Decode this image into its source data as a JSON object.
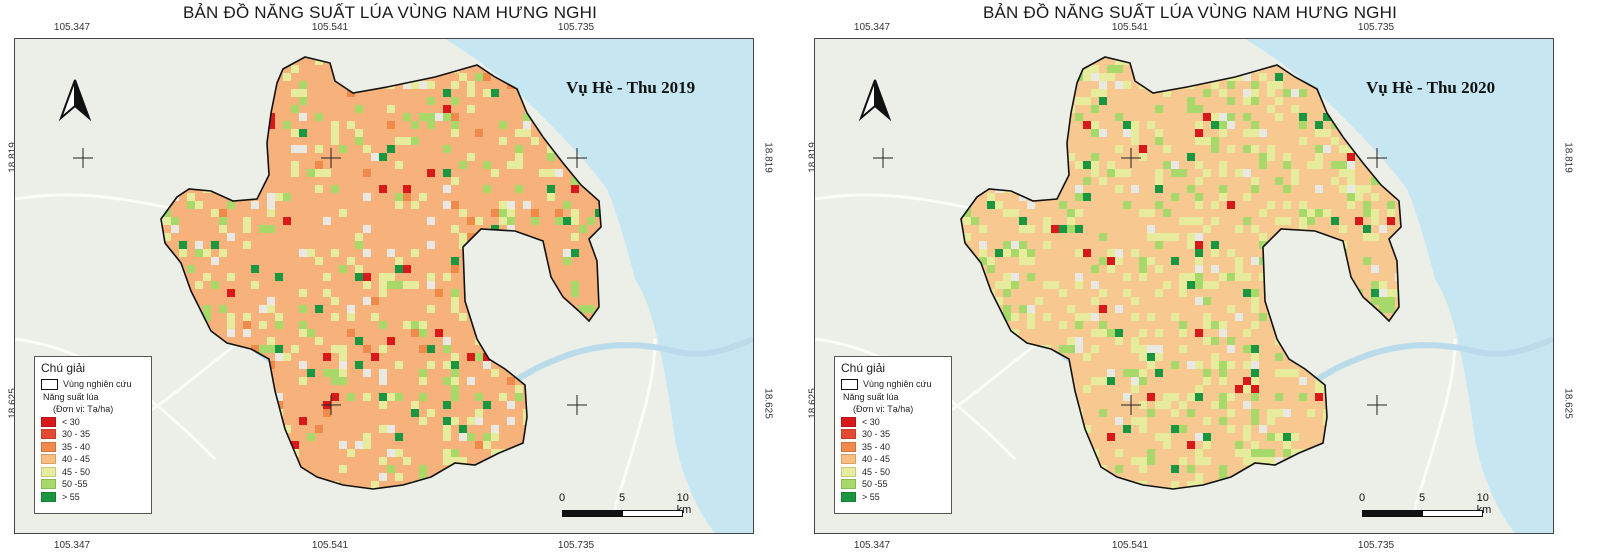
{
  "maps": [
    {
      "title": "BẢN ĐỒ NĂNG SUẤT LÚA VÙNG NAM HƯNG NGHI",
      "season": "Vụ Hè - Thu 2019",
      "x_ticks": [
        "105.347",
        "105.541",
        "105.735"
      ],
      "y_ticks": [
        "18.819",
        "18.625"
      ]
    },
    {
      "title": "BẢN ĐỒ NĂNG SUẤT LÚA VÙNG NAM HƯNG NGHI",
      "season": "Vụ Hè - Thu 2020",
      "x_ticks": [
        "105.347",
        "105.541",
        "105.735"
      ],
      "y_ticks": [
        "18.819",
        "18.625"
      ]
    }
  ],
  "legend": {
    "title": "Chú giải",
    "study_area": "Vùng nghiên cứu",
    "yield_label": "Năng suất lúa",
    "unit": "(Đơn vị: Tạ/ha)",
    "classes": [
      {
        "label": "< 30",
        "color": "#d7191c"
      },
      {
        "label": "30 - 35",
        "color": "#e34a33"
      },
      {
        "label": "35 - 40",
        "color": "#f08a4b"
      },
      {
        "label": "40 - 45",
        "color": "#f9bd7e"
      },
      {
        "label": "45 - 50",
        "color": "#e7ec9c"
      },
      {
        "label": "50 -55",
        "color": "#a6d96a"
      },
      {
        "label": "> 55",
        "color": "#1a9641"
      }
    ]
  },
  "scalebar": {
    "labels": [
      "0",
      "5",
      "10 km"
    ]
  },
  "icons": {
    "north_arrow": "north-arrow-icon",
    "graticule": "crosshair-icon"
  }
}
